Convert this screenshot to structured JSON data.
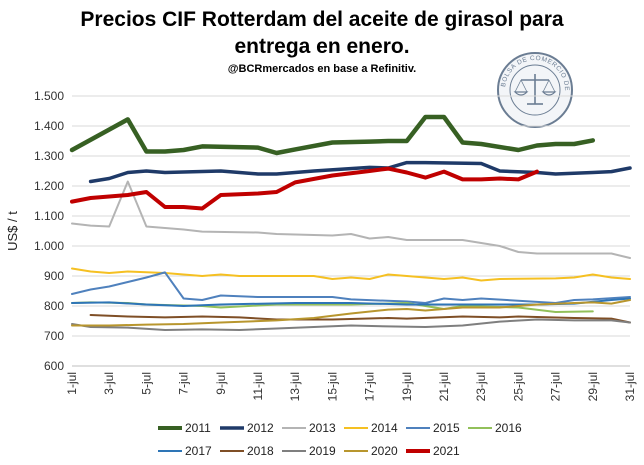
{
  "header": {
    "title_line1": "Precios CIF Rotterdam del aceite de girasol para",
    "title_line2": "entrega en enero.",
    "subtitle": "@BCRmercados en base a Refinitiv."
  },
  "seal": {
    "text": "BOLSA DE COMERCIO DE ROSARIO",
    "color": "#6b7d93"
  },
  "chart_data": {
    "type": "line",
    "ylabel": "US$ / t",
    "xlabel": "",
    "ylim": [
      600,
      1500
    ],
    "yticks": [
      600,
      700,
      800,
      900,
      1000,
      1100,
      1200,
      1300,
      1400,
      1500
    ],
    "ytick_labels": [
      "600",
      "700",
      "800",
      "900",
      "1.000",
      "1.100",
      "1.200",
      "1.300",
      "1.400",
      "1.500"
    ],
    "x": [
      1,
      2,
      3,
      4,
      5,
      6,
      7,
      8,
      9,
      10,
      11,
      12,
      13,
      14,
      15,
      16,
      17,
      18,
      19,
      20,
      21,
      22,
      23,
      24,
      25,
      26,
      27,
      28,
      29,
      30,
      31
    ],
    "xtick_labels": [
      "1-jul",
      "3-jul",
      "5-jul",
      "7-jul",
      "9-jul",
      "11-jul",
      "13-jul",
      "15-jul",
      "17-jul",
      "19-jul",
      "21-jul",
      "23-jul",
      "25-jul",
      "27-jul",
      "29-jul",
      "31-jul"
    ],
    "xtick_days": [
      1,
      3,
      5,
      7,
      9,
      11,
      13,
      15,
      17,
      19,
      21,
      23,
      25,
      27,
      29,
      31
    ],
    "legend_position": "bottom",
    "grid": true,
    "series": [
      {
        "name": "2011",
        "color": "#376023",
        "width": 4.5,
        "points": [
          [
            1,
            1320
          ],
          [
            4,
            1422
          ],
          [
            5,
            1315
          ],
          [
            6,
            1315
          ],
          [
            7,
            1320
          ],
          [
            8,
            1332
          ],
          [
            11,
            1328
          ],
          [
            12,
            1310
          ],
          [
            13,
            1322
          ],
          [
            15,
            1345
          ],
          [
            17,
            1348
          ],
          [
            18,
            1350
          ],
          [
            19,
            1350
          ],
          [
            20,
            1430
          ],
          [
            21,
            1430
          ],
          [
            22,
            1345
          ],
          [
            23,
            1340
          ],
          [
            25,
            1320
          ],
          [
            26,
            1335
          ],
          [
            27,
            1340
          ],
          [
            28,
            1340
          ],
          [
            29,
            1352
          ]
        ]
      },
      {
        "name": "2012",
        "color": "#1f3a68",
        "width": 3.5,
        "points": [
          [
            2,
            1215
          ],
          [
            3,
            1225
          ],
          [
            4,
            1245
          ],
          [
            5,
            1250
          ],
          [
            6,
            1245
          ],
          [
            9,
            1250
          ],
          [
            11,
            1240
          ],
          [
            12,
            1240
          ],
          [
            14,
            1250
          ],
          [
            17,
            1262
          ],
          [
            18,
            1260
          ],
          [
            19,
            1278
          ],
          [
            20,
            1278
          ],
          [
            23,
            1275
          ],
          [
            24,
            1250
          ],
          [
            26,
            1245
          ],
          [
            27,
            1240
          ],
          [
            29,
            1245
          ],
          [
            30,
            1248
          ],
          [
            31,
            1260
          ]
        ]
      },
      {
        "name": "2013",
        "color": "#b4b4b4",
        "width": 2,
        "points": [
          [
            1,
            1075
          ],
          [
            2,
            1068
          ],
          [
            3,
            1065
          ],
          [
            4,
            1215
          ],
          [
            5,
            1065
          ],
          [
            6,
            1060
          ],
          [
            7,
            1055
          ],
          [
            8,
            1048
          ],
          [
            11,
            1045
          ],
          [
            12,
            1040
          ],
          [
            15,
            1035
          ],
          [
            16,
            1040
          ],
          [
            17,
            1025
          ],
          [
            18,
            1030
          ],
          [
            19,
            1020
          ],
          [
            22,
            1020
          ],
          [
            24,
            1000
          ],
          [
            25,
            980
          ],
          [
            26,
            975
          ],
          [
            30,
            975
          ],
          [
            31,
            960
          ]
        ]
      },
      {
        "name": "2014",
        "color": "#f5c022",
        "width": 2,
        "points": [
          [
            1,
            925
          ],
          [
            2,
            915
          ],
          [
            3,
            910
          ],
          [
            4,
            915
          ],
          [
            6,
            910
          ],
          [
            8,
            900
          ],
          [
            9,
            905
          ],
          [
            10,
            900
          ],
          [
            14,
            900
          ],
          [
            15,
            890
          ],
          [
            16,
            895
          ],
          [
            17,
            890
          ],
          [
            18,
            905
          ],
          [
            20,
            895
          ],
          [
            21,
            890
          ],
          [
            22,
            895
          ],
          [
            23,
            885
          ],
          [
            24,
            890
          ],
          [
            27,
            892
          ],
          [
            28,
            895
          ],
          [
            29,
            905
          ],
          [
            30,
            895
          ],
          [
            31,
            890
          ]
        ]
      },
      {
        "name": "2015",
        "color": "#4f81bd",
        "width": 2,
        "points": [
          [
            1,
            840
          ],
          [
            2,
            855
          ],
          [
            3,
            865
          ],
          [
            4,
            880
          ],
          [
            5,
            895
          ],
          [
            6,
            912
          ],
          [
            7,
            825
          ],
          [
            8,
            820
          ],
          [
            9,
            835
          ],
          [
            11,
            830
          ],
          [
            15,
            830
          ],
          [
            16,
            822
          ],
          [
            19,
            815
          ],
          [
            20,
            810
          ],
          [
            21,
            825
          ],
          [
            22,
            820
          ],
          [
            23,
            825
          ],
          [
            27,
            810
          ],
          [
            28,
            820
          ],
          [
            29,
            822
          ],
          [
            31,
            830
          ]
        ]
      },
      {
        "name": "2016",
        "color": "#92c05a",
        "width": 2,
        "points": [
          [
            1,
            810
          ],
          [
            2,
            812
          ],
          [
            4,
            810
          ],
          [
            5,
            805
          ],
          [
            8,
            800
          ],
          [
            9,
            795
          ],
          [
            12,
            805
          ],
          [
            16,
            805
          ],
          [
            19,
            810
          ],
          [
            21,
            790
          ],
          [
            22,
            800
          ],
          [
            25,
            795
          ],
          [
            27,
            780
          ],
          [
            29,
            782
          ]
        ]
      },
      {
        "name": "2017",
        "color": "#2e75b6",
        "width": 2,
        "points": [
          [
            1,
            810
          ],
          [
            3,
            812
          ],
          [
            5,
            805
          ],
          [
            7,
            800
          ],
          [
            9,
            805
          ],
          [
            13,
            810
          ],
          [
            16,
            810
          ],
          [
            19,
            805
          ],
          [
            22,
            805
          ],
          [
            24,
            805
          ],
          [
            26,
            805
          ],
          [
            28,
            808
          ],
          [
            30,
            820
          ],
          [
            31,
            825
          ]
        ]
      },
      {
        "name": "2018",
        "color": "#7f4f26",
        "width": 2,
        "points": [
          [
            2,
            770
          ],
          [
            4,
            765
          ],
          [
            6,
            762
          ],
          [
            8,
            765
          ],
          [
            10,
            762
          ],
          [
            12,
            755
          ],
          [
            15,
            755
          ],
          [
            18,
            760
          ],
          [
            19,
            758
          ],
          [
            22,
            765
          ],
          [
            24,
            762
          ],
          [
            25,
            765
          ],
          [
            28,
            760
          ],
          [
            30,
            758
          ],
          [
            31,
            745
          ]
        ]
      },
      {
        "name": "2019",
        "color": "#7f7f7f",
        "width": 2,
        "points": [
          [
            1,
            740
          ],
          [
            2,
            730
          ],
          [
            4,
            728
          ],
          [
            6,
            720
          ],
          [
            8,
            722
          ],
          [
            10,
            720
          ],
          [
            12,
            725
          ],
          [
            14,
            730
          ],
          [
            16,
            735
          ],
          [
            18,
            732
          ],
          [
            20,
            730
          ],
          [
            22,
            735
          ],
          [
            24,
            748
          ],
          [
            26,
            755
          ],
          [
            28,
            752
          ],
          [
            30,
            752
          ],
          [
            31,
            745
          ]
        ]
      },
      {
        "name": "2020",
        "color": "#b8962e",
        "width": 2,
        "points": [
          [
            1,
            735
          ],
          [
            3,
            735
          ],
          [
            5,
            738
          ],
          [
            7,
            740
          ],
          [
            9,
            745
          ],
          [
            12,
            752
          ],
          [
            14,
            760
          ],
          [
            16,
            775
          ],
          [
            18,
            788
          ],
          [
            19,
            790
          ],
          [
            20,
            785
          ],
          [
            22,
            795
          ],
          [
            24,
            795
          ],
          [
            26,
            805
          ],
          [
            28,
            810
          ],
          [
            29,
            812
          ],
          [
            30,
            808
          ],
          [
            31,
            820
          ]
        ]
      },
      {
        "name": "2021",
        "color": "#c00000",
        "width": 4,
        "points": [
          [
            1,
            1148
          ],
          [
            2,
            1160
          ],
          [
            3,
            1165
          ],
          [
            4,
            1170
          ],
          [
            5,
            1180
          ],
          [
            6,
            1130
          ],
          [
            7,
            1130
          ],
          [
            8,
            1125
          ],
          [
            9,
            1170
          ],
          [
            11,
            1175
          ],
          [
            12,
            1180
          ],
          [
            13,
            1212
          ],
          [
            15,
            1235
          ],
          [
            17,
            1250
          ],
          [
            18,
            1258
          ],
          [
            19,
            1245
          ],
          [
            20,
            1228
          ],
          [
            21,
            1248
          ],
          [
            22,
            1222
          ],
          [
            23,
            1222
          ],
          [
            24,
            1225
          ],
          [
            25,
            1222
          ],
          [
            26,
            1248
          ]
        ]
      }
    ]
  }
}
